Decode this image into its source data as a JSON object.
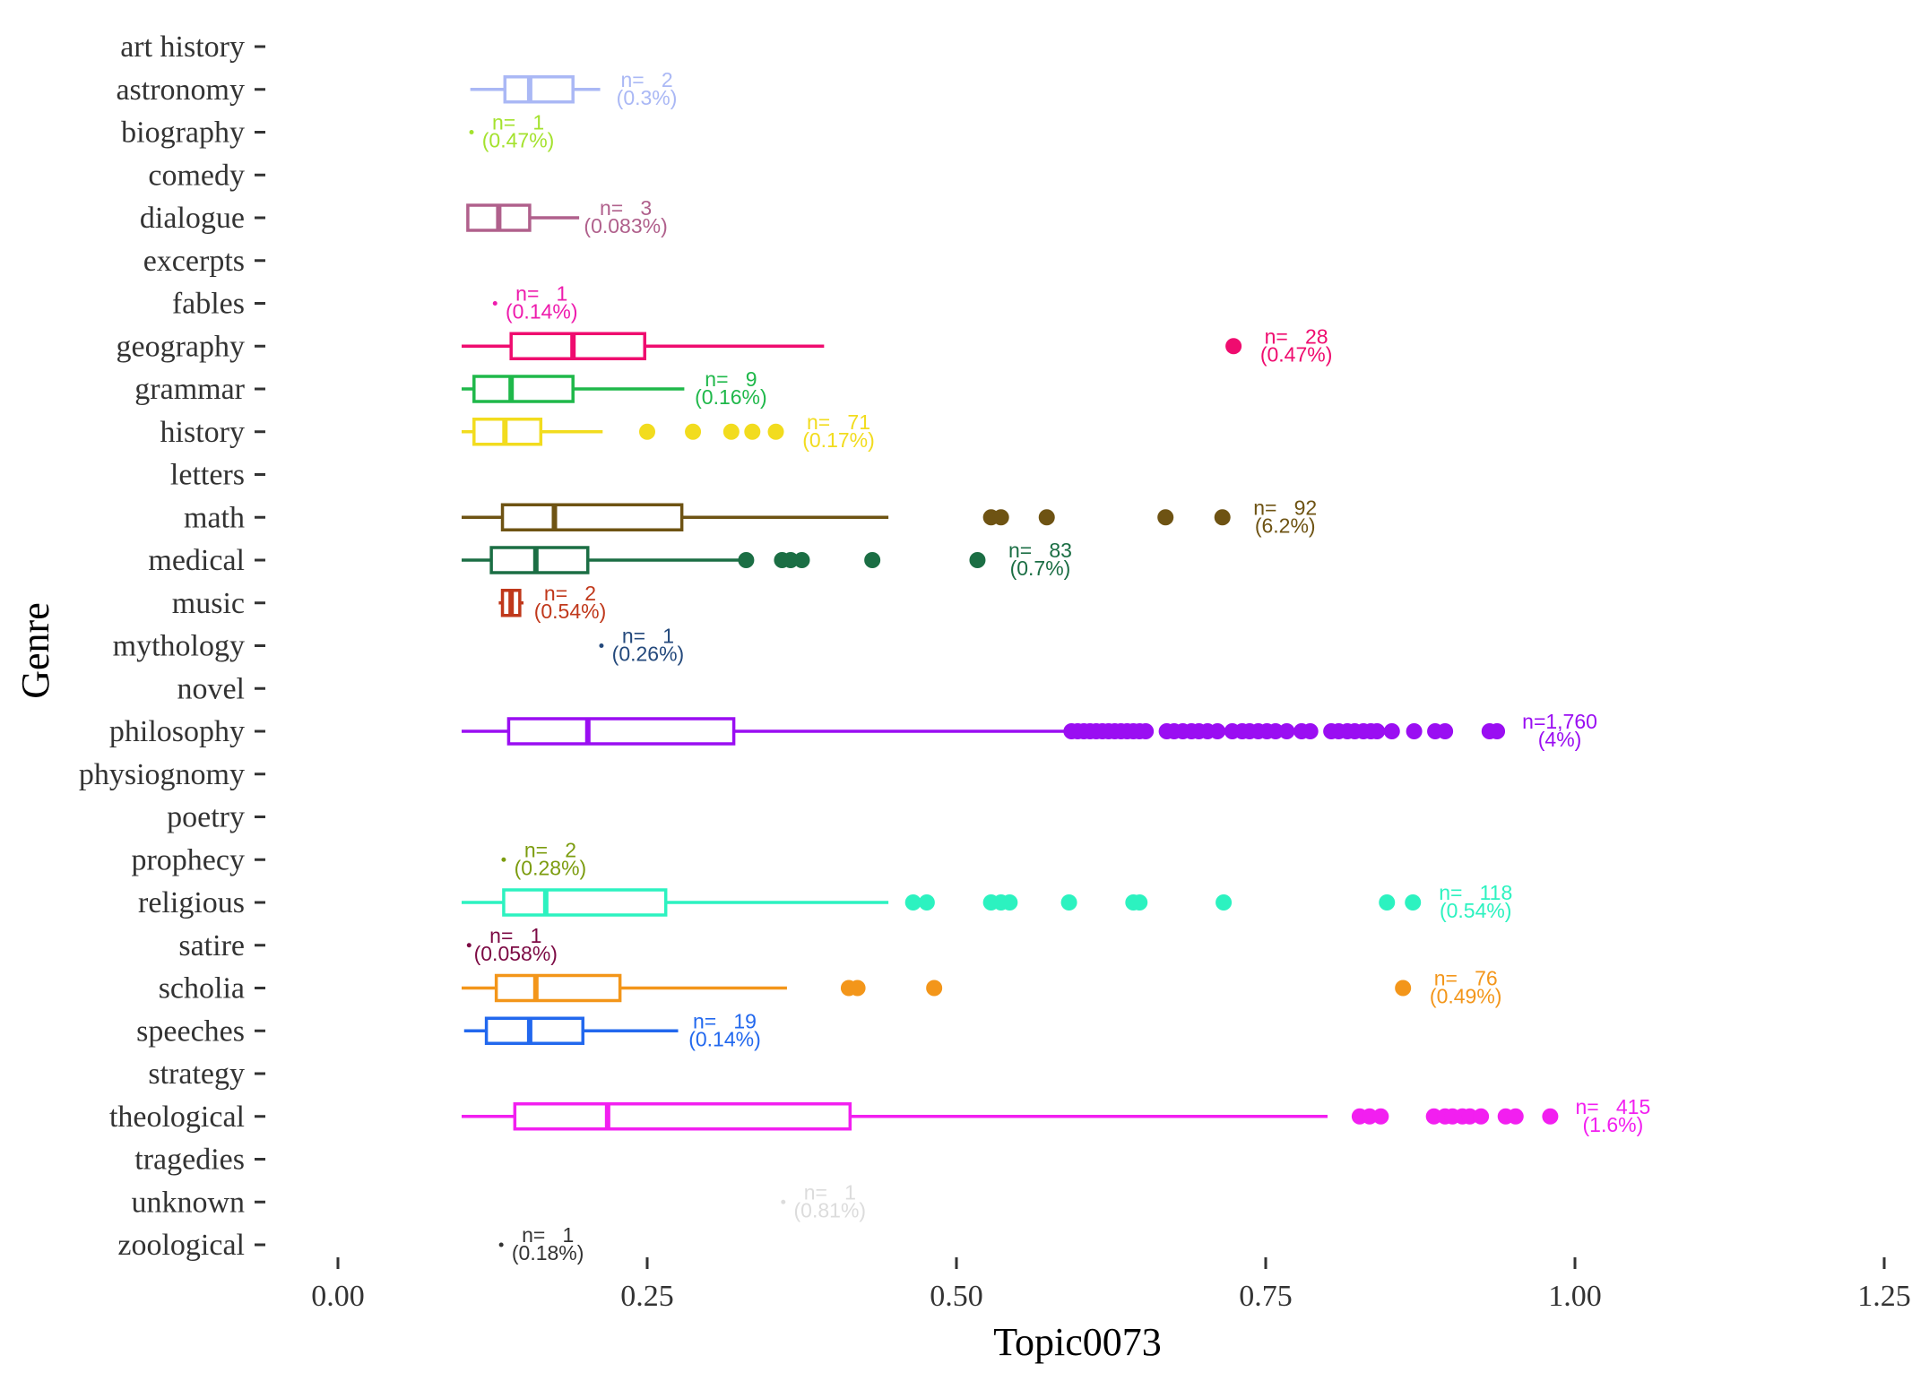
{
  "chart_data": {
    "type": "boxplot",
    "title": "",
    "xlabel": "Topic0073",
    "ylabel": "Genre",
    "xlim": [
      0,
      1.25
    ],
    "xticks": [
      0.0,
      0.25,
      0.5,
      0.75,
      1.0,
      1.25
    ],
    "xtick_labels": [
      "0.00",
      "0.25",
      "0.50",
      "0.75",
      "1.00",
      "1.25"
    ],
    "grid": false,
    "legend": "none",
    "categories": [
      "art history",
      "astronomy",
      "biography",
      "comedy",
      "dialogue",
      "excerpts",
      "fables",
      "geography",
      "grammar",
      "history",
      "letters",
      "math",
      "medical",
      "music",
      "mythology",
      "novel",
      "philosophy",
      "physiognomy",
      "poetry",
      "prophecy",
      "religious",
      "satire",
      "scholia",
      "speeches",
      "strategy",
      "theological",
      "tragedies",
      "unknown",
      "zoological"
    ],
    "series": [
      {
        "genre": "astronomy",
        "color": "#aab8f5",
        "stats": {
          "min": 0.107,
          "q1": 0.135,
          "median": 0.155,
          "q3": 0.19,
          "max": 0.212
        },
        "outliers": [],
        "n_label": "n=   2",
        "pct_label": "(0.3%)"
      },
      {
        "genre": "biography",
        "color": "#a4e22e",
        "stats": {
          "min": 0.108,
          "q1": 0.108,
          "median": 0.108,
          "q3": 0.108,
          "max": 0.108
        },
        "outliers": [],
        "n_label": "n=   1",
        "pct_label": "(0.47%)"
      },
      {
        "genre": "dialogue",
        "color": "#b0608c",
        "stats": {
          "min": 0.105,
          "q1": 0.105,
          "median": 0.13,
          "q3": 0.155,
          "max": 0.195
        },
        "outliers": [],
        "n_label": "n=   3",
        "pct_label": "(0.083%)"
      },
      {
        "genre": "fables",
        "color": "#ee1cad",
        "stats": {
          "min": 0.127,
          "q1": 0.127,
          "median": 0.127,
          "q3": 0.127,
          "max": 0.127
        },
        "outliers": [],
        "n_label": "n=   1",
        "pct_label": "(0.14%)"
      },
      {
        "genre": "geography",
        "color": "#ef0c6f",
        "stats": {
          "min": 0.1,
          "q1": 0.14,
          "median": 0.19,
          "q3": 0.248,
          "max": 0.393
        },
        "outliers": [
          0.724
        ],
        "n_label": "n=   28",
        "pct_label": "(0.47%)"
      },
      {
        "genre": "grammar",
        "color": "#1fb84a",
        "stats": {
          "min": 0.1,
          "q1": 0.11,
          "median": 0.14,
          "q3": 0.19,
          "max": 0.28
        },
        "outliers": [],
        "n_label": "n=   9",
        "pct_label": "(0.16%)"
      },
      {
        "genre": "history",
        "color": "#f2dc1e",
        "stats": {
          "min": 0.1,
          "q1": 0.11,
          "median": 0.135,
          "q3": 0.164,
          "max": 0.214
        },
        "outliers": [
          0.25,
          0.287,
          0.318,
          0.335,
          0.354
        ],
        "n_label": "n=   71",
        "pct_label": "(0.17%)"
      },
      {
        "genre": "math",
        "color": "#6e5313",
        "stats": {
          "min": 0.1,
          "q1": 0.133,
          "median": 0.175,
          "q3": 0.278,
          "max": 0.445
        },
        "outliers": [
          0.528,
          0.536,
          0.573,
          0.669,
          0.715
        ],
        "n_label": "n=   92",
        "pct_label": "(6.2%)"
      },
      {
        "genre": "medical",
        "color": "#1b6e44",
        "stats": {
          "min": 0.1,
          "q1": 0.124,
          "median": 0.16,
          "q3": 0.202,
          "max": 0.33
        },
        "outliers": [
          0.33,
          0.359,
          0.366,
          0.375,
          0.432,
          0.517
        ],
        "n_label": "n=   83",
        "pct_label": "(0.7%)"
      },
      {
        "genre": "music",
        "color": "#c0381b",
        "stats": {
          "min": 0.13,
          "q1": 0.133,
          "median": 0.14,
          "q3": 0.147,
          "max": 0.15
        },
        "outliers": [],
        "n_label": "n=   2",
        "pct_label": "(0.54%)"
      },
      {
        "genre": "mythology",
        "color": "#24497c",
        "stats": {
          "min": 0.213,
          "q1": 0.213,
          "median": 0.213,
          "q3": 0.213,
          "max": 0.213
        },
        "outliers": [],
        "n_label": "n=   1",
        "pct_label": "(0.26%)"
      },
      {
        "genre": "philosophy",
        "color": "#9a0ef2",
        "stats": {
          "min": 0.1,
          "q1": 0.138,
          "median": 0.202,
          "q3": 0.32,
          "max": 0.59
        },
        "outliers": [
          0.593,
          0.598,
          0.603,
          0.608,
          0.613,
          0.618,
          0.623,
          0.628,
          0.633,
          0.638,
          0.643,
          0.648,
          0.653,
          0.67,
          0.676,
          0.683,
          0.69,
          0.696,
          0.703,
          0.711,
          0.723,
          0.731,
          0.737,
          0.744,
          0.751,
          0.758,
          0.767,
          0.779,
          0.786,
          0.803,
          0.809,
          0.816,
          0.822,
          0.829,
          0.835,
          0.84,
          0.852,
          0.87,
          0.887,
          0.895,
          0.931,
          0.937
        ],
        "n_label": "n=1,760",
        "pct_label": "(4%)"
      },
      {
        "genre": "prophecy",
        "color": "#7c9c0f",
        "stats": {
          "min": 0.134,
          "q1": 0.134,
          "median": 0.134,
          "q3": 0.134,
          "max": 0.134
        },
        "outliers": [],
        "n_label": "n=   2",
        "pct_label": "(0.28%)"
      },
      {
        "genre": "religious",
        "color": "#2cf2c0",
        "stats": {
          "min": 0.1,
          "q1": 0.134,
          "median": 0.168,
          "q3": 0.265,
          "max": 0.445
        },
        "outliers": [
          0.465,
          0.476,
          0.528,
          0.536,
          0.543,
          0.591,
          0.643,
          0.648,
          0.716,
          0.848,
          0.869
        ],
        "n_label": "n=   118",
        "pct_label": "(0.54%)"
      },
      {
        "genre": "satire",
        "color": "#7c0a44",
        "stats": {
          "min": 0.106,
          "q1": 0.106,
          "median": 0.106,
          "q3": 0.106,
          "max": 0.106
        },
        "outliers": [],
        "n_label": "n=   1",
        "pct_label": "(0.058%)"
      },
      {
        "genre": "scholia",
        "color": "#f3961a",
        "stats": {
          "min": 0.1,
          "q1": 0.128,
          "median": 0.16,
          "q3": 0.228,
          "max": 0.363
        },
        "outliers": [
          0.413,
          0.42,
          0.482,
          0.861
        ],
        "n_label": "n=   76",
        "pct_label": "(0.49%)"
      },
      {
        "genre": "speeches",
        "color": "#2268ee",
        "stats": {
          "min": 0.102,
          "q1": 0.12,
          "median": 0.155,
          "q3": 0.198,
          "max": 0.275
        },
        "outliers": [],
        "n_label": "n=   19",
        "pct_label": "(0.14%)"
      },
      {
        "genre": "theological",
        "color": "#f21ff0",
        "stats": {
          "min": 0.1,
          "q1": 0.143,
          "median": 0.218,
          "q3": 0.414,
          "max": 0.8
        },
        "outliers": [
          0.826,
          0.834,
          0.843,
          0.886,
          0.895,
          0.901,
          0.909,
          0.915,
          0.924,
          0.944,
          0.952,
          0.98
        ],
        "n_label": "n=   415",
        "pct_label": "(1.6%)"
      },
      {
        "genre": "unknown",
        "color": "#dcdcdc",
        "stats": {
          "min": 0.36,
          "q1": 0.36,
          "median": 0.36,
          "q3": 0.36,
          "max": 0.36
        },
        "outliers": [],
        "n_label": "n=   1",
        "pct_label": "(0.81%)"
      },
      {
        "genre": "zoological",
        "color": "#333333",
        "stats": {
          "min": 0.132,
          "q1": 0.132,
          "median": 0.132,
          "q3": 0.132,
          "max": 0.132
        },
        "outliers": [],
        "n_label": "n=   1",
        "pct_label": "(0.18%)"
      }
    ]
  }
}
